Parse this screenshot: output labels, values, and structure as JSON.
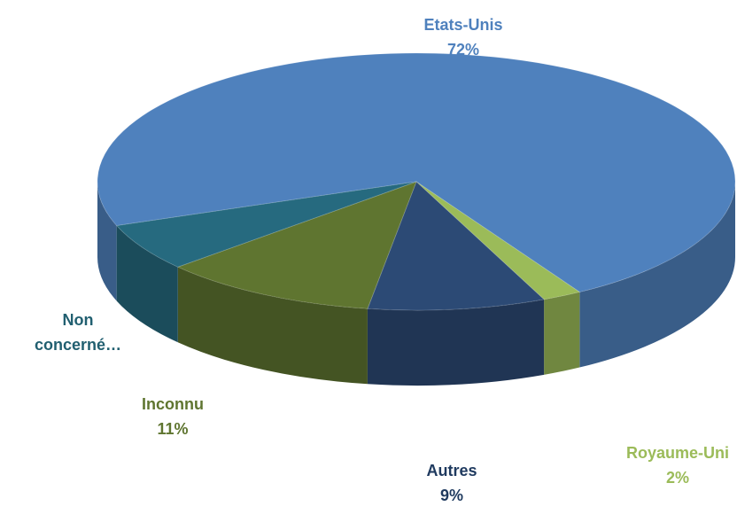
{
  "chart_data": {
    "type": "pie3d",
    "categories": [
      "Etats-Unis",
      "Royaume-Uni",
      "Autres",
      "Inconnu",
      "Non concerné…"
    ],
    "values": [
      72,
      2,
      9,
      11,
      6
    ],
    "value_labels": [
      "72%",
      "2%",
      "9%",
      "11%",
      null
    ],
    "colors": [
      "#4f81bd",
      "#9bbb59",
      "#2c4a75",
      "#5f7530",
      "#266a7f"
    ]
  }
}
